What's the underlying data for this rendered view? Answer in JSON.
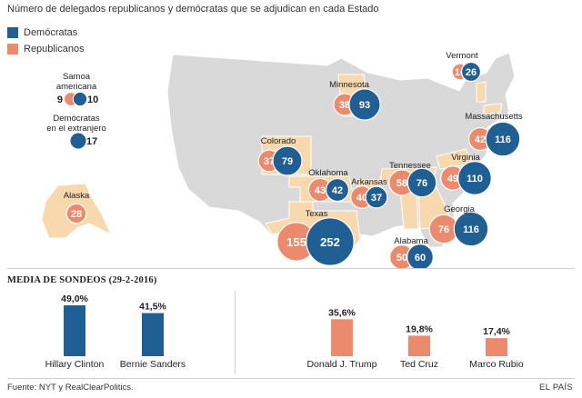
{
  "title": "Número de delegados republicanos y demócratas que se adjudican en cada Estado",
  "legend": {
    "dem": {
      "label": "Demócratas",
      "color": "#1f5f93"
    },
    "rep": {
      "label": "Republicanos",
      "color": "#ec8a6e"
    }
  },
  "colors": {
    "state_default": "#d9d9d9",
    "state_highlight": "#f8d9ae",
    "border": "#ffffff"
  },
  "chart_data": [
    {
      "type": "bubble-map",
      "states": [
        {
          "name": "Minnesota",
          "rep": 38,
          "dem": 93
        },
        {
          "name": "Vermont",
          "rep": 16,
          "dem": 26
        },
        {
          "name": "Massachusetts",
          "rep": 42,
          "dem": 116
        },
        {
          "name": "Colorado",
          "rep": 37,
          "dem": 79
        },
        {
          "name": "Oklahoma",
          "rep": 43,
          "dem": 42
        },
        {
          "name": "Arkansas",
          "rep": 40,
          "dem": 37
        },
        {
          "name": "Tennessee",
          "rep": 58,
          "dem": 76
        },
        {
          "name": "Virginia",
          "rep": 49,
          "dem": 110
        },
        {
          "name": "Georgia",
          "rep": 76,
          "dem": 116
        },
        {
          "name": "Texas",
          "rep": 155,
          "dem": 252
        },
        {
          "name": "Alabama",
          "rep": 50,
          "dem": 60
        },
        {
          "name": "Alaska",
          "rep": 28,
          "dem": null
        }
      ],
      "territories": [
        {
          "name": "Samoa americana",
          "rep": 9,
          "dem": 10
        },
        {
          "name": "Demócratas en el extranjero",
          "rep": null,
          "dem": 17
        }
      ]
    },
    {
      "type": "bar",
      "title": "MEDIA DE SONDEOS (29-2-2016)",
      "groups": [
        {
          "party": "dem",
          "categories": [
            "Hillary Clinton",
            "Bernie Sanders"
          ],
          "values": [
            49.0,
            41.5
          ],
          "labels": [
            "49,0%",
            "41,5%"
          ]
        },
        {
          "party": "rep",
          "categories": [
            "Donald J. Trump",
            "Ted Cruz",
            "Marco Rubio"
          ],
          "values": [
            35.6,
            19.8,
            17.4
          ],
          "labels": [
            "35,6%",
            "19,8%",
            "17,4%"
          ]
        }
      ]
    }
  ],
  "source": "Fuente: NYT y RealClearPolitics.",
  "credit": "EL PAÍS"
}
